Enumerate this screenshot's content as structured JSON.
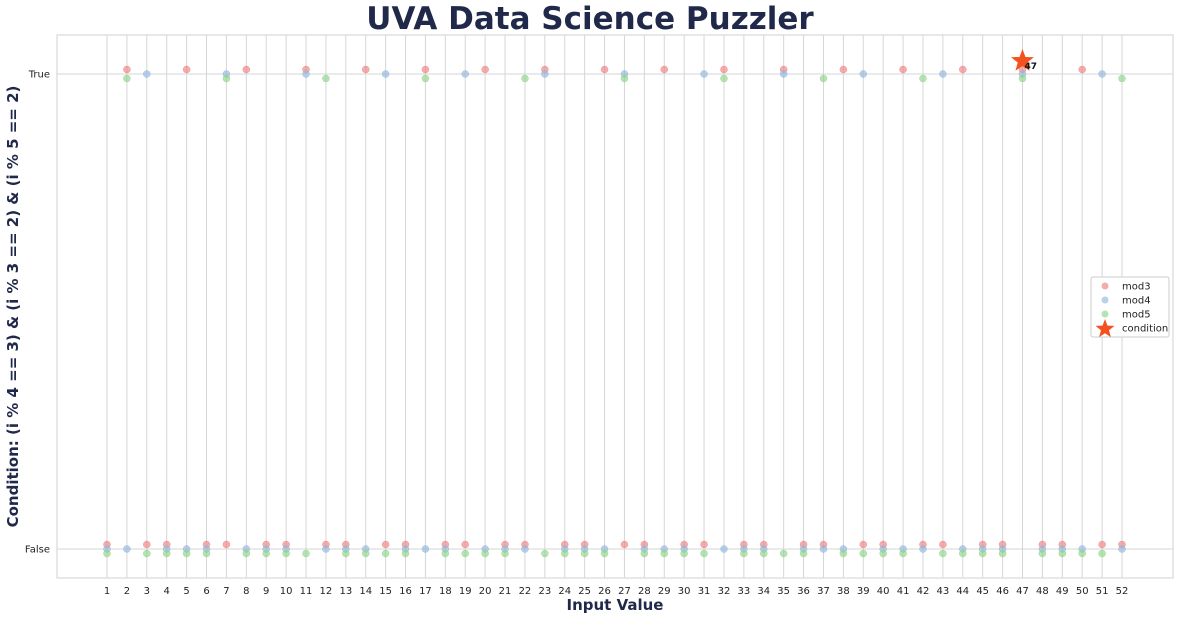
{
  "chart_data": {
    "type": "scatter",
    "title": "UVA Data Science Puzzler",
    "xlabel": "Input Value",
    "ylabel": "Condition: (i % 4 == 3) & (i % 3 == 2) & (i % 5 == 2)",
    "x": [
      1,
      2,
      3,
      4,
      5,
      6,
      7,
      8,
      9,
      10,
      11,
      12,
      13,
      14,
      15,
      16,
      17,
      18,
      19,
      20,
      21,
      22,
      23,
      24,
      25,
      26,
      27,
      28,
      29,
      30,
      31,
      32,
      33,
      34,
      35,
      36,
      37,
      38,
      39,
      40,
      41,
      42,
      43,
      44,
      45,
      46,
      47,
      48,
      49,
      50,
      51,
      52
    ],
    "y_categories": [
      "False",
      "True"
    ],
    "series": [
      {
        "name": "mod3",
        "color": "#f08080",
        "values": [
          false,
          true,
          false,
          false,
          true,
          false,
          false,
          true,
          false,
          false,
          true,
          false,
          false,
          true,
          false,
          false,
          true,
          false,
          false,
          true,
          false,
          false,
          true,
          false,
          false,
          true,
          false,
          false,
          true,
          false,
          false,
          true,
          false,
          false,
          true,
          false,
          false,
          true,
          false,
          false,
          true,
          false,
          false,
          true,
          false,
          false,
          true,
          false,
          false,
          true,
          false,
          false
        ]
      },
      {
        "name": "mod4",
        "color": "#92b7dd",
        "values": [
          false,
          false,
          true,
          false,
          false,
          false,
          true,
          false,
          false,
          false,
          true,
          false,
          false,
          false,
          true,
          false,
          false,
          false,
          true,
          false,
          false,
          false,
          true,
          false,
          false,
          false,
          true,
          false,
          false,
          false,
          true,
          false,
          false,
          false,
          true,
          false,
          false,
          false,
          true,
          false,
          false,
          false,
          true,
          false,
          false,
          false,
          true,
          false,
          false,
          false,
          true,
          false
        ]
      },
      {
        "name": "mod5",
        "color": "#8fd48a",
        "values": [
          false,
          true,
          false,
          false,
          false,
          false,
          true,
          false,
          false,
          false,
          false,
          true,
          false,
          false,
          false,
          false,
          true,
          false,
          false,
          false,
          false,
          true,
          false,
          false,
          false,
          false,
          true,
          false,
          false,
          false,
          false,
          true,
          false,
          false,
          false,
          false,
          true,
          false,
          false,
          false,
          false,
          true,
          false,
          false,
          false,
          false,
          true,
          false,
          false,
          false,
          false,
          true
        ]
      },
      {
        "name": "condition",
        "color": "#f4511e",
        "marker": "star",
        "x": [
          47
        ],
        "values": [
          true
        ]
      }
    ],
    "annotations": [
      {
        "text": "47",
        "x": 47,
        "y": "True"
      }
    ],
    "grid": true,
    "legend": "center-right"
  }
}
